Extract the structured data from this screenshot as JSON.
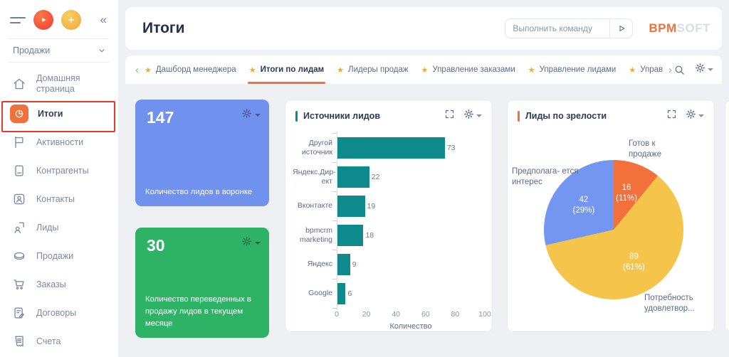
{
  "app": {
    "logo": {
      "bpm": "BPM",
      "soft": "SOFT"
    },
    "command_bar": {
      "placeholder": "Выполнить команду"
    }
  },
  "page": {
    "title": "Итоги"
  },
  "glyphs": {
    "star": "★",
    "collapse": "«",
    "chevron_left": "‹",
    "chevron_right": "›"
  },
  "sidebar": {
    "workspace": "Продажи",
    "active_item": "Итоги",
    "items": [
      {
        "label": "Домашняя страница"
      },
      {
        "label": "Итоги"
      },
      {
        "label": "Активности"
      },
      {
        "label": "Контрагенты"
      },
      {
        "label": "Контакты"
      },
      {
        "label": "Лиды"
      },
      {
        "label": "Продажи"
      },
      {
        "label": "Заказы"
      },
      {
        "label": "Договоры"
      },
      {
        "label": "Счета"
      }
    ]
  },
  "tabs": {
    "active": "Итоги по лидам",
    "items": [
      {
        "label": "Дашборд менеджера"
      },
      {
        "label": "Итоги по лидам"
      },
      {
        "label": "Лидеры продаж"
      },
      {
        "label": "Управление заказами"
      },
      {
        "label": "Управление лидами"
      },
      {
        "label": "Управление обраще"
      }
    ]
  },
  "annotation": {
    "label": "Итоги",
    "color": "#e8392b"
  },
  "metrics": [
    {
      "value": "147",
      "caption": "Количество лидов в воронке",
      "color": "#7191ee"
    },
    {
      "value": "30",
      "caption": "Количество переведенных в продажу лидов в текущем месяце",
      "color": "#2eb366"
    }
  ],
  "chart_data": [
    {
      "type": "bar",
      "orientation": "horizontal",
      "title": "Источники лидов",
      "accent_color": "#0e8a8c",
      "bar_color": "#0e8a8c",
      "categories": [
        "Другой источник",
        "Яндекс.Директ",
        "Вконтакте",
        "bpmcrm marketing",
        "Яндекс",
        "Google"
      ],
      "display_lines": [
        [
          "Другой",
          "источник"
        ],
        [
          "Яндекс.Дир-",
          "ект"
        ],
        [
          "Вконтакте"
        ],
        [
          "bpmcrm",
          "marketing"
        ],
        [
          "Яндекс"
        ],
        [
          "Google"
        ]
      ],
      "values": [
        73,
        22,
        19,
        18,
        9,
        6
      ],
      "xlabel": "Количество",
      "xlim": [
        0,
        100
      ],
      "xticks": [
        0,
        20,
        40,
        60,
        80,
        100
      ],
      "grid": false,
      "value_labels": true
    },
    {
      "type": "pie",
      "title": "Лиды по зрелости",
      "accent_color": "#f2703c",
      "total": 147,
      "start_angle": "top",
      "direction": "clockwise",
      "slices": [
        {
          "label": "Готов к продаже",
          "callout": "Готов к продаже",
          "value": 16,
          "pct": "11%",
          "color": "#f2703c"
        },
        {
          "label": "Потребность удовлетвор...",
          "callout": "Потребность удовлетвор...",
          "value": 89,
          "pct": "61%",
          "color": "#f5c54b"
        },
        {
          "label": "Предполагается интерес",
          "callout": "Предполага- ется интерес",
          "value": 42,
          "pct": "29%",
          "color": "#7396f0"
        }
      ]
    }
  ]
}
